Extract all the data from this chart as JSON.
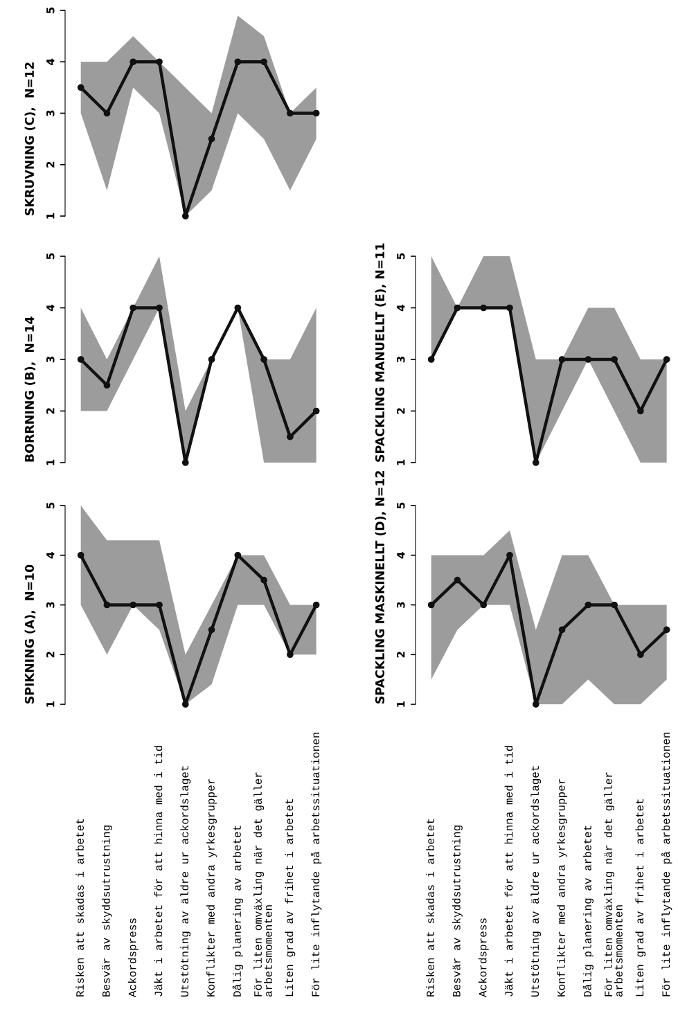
{
  "chart_data": [
    {
      "type": "line",
      "title": "SPIKNING (A),  N=10",
      "categories": [
        "Risken att skadas i arbetet",
        "Besvär av skyddsutrustning",
        "Ackordspress",
        "Jäkt i arbetet för att hinna med i tid",
        "Utstötning av äldre ur ackordslaget",
        "Konflikter med andra yrkesgrupper",
        "Dålig planering av arbetet",
        "För liten omväxling när det gäller\narbetsmomenten",
        "Liten grad av frihet i arbetet",
        "För lite inflytande på arbetssituationen"
      ],
      "ylim": [
        1,
        5
      ],
      "yticks": [
        1,
        2,
        3,
        4,
        5
      ],
      "marker": "circle",
      "line_style": "solid",
      "series": [
        {
          "color": "#111111",
          "values": [
            4,
            3,
            3,
            3,
            1,
            2.5,
            4,
            3.5,
            2,
            3
          ],
          "lower": [
            3,
            2,
            3,
            2.5,
            1,
            1.4,
            3,
            3,
            2,
            2
          ],
          "upper": [
            5,
            4.3,
            4.3,
            4.3,
            2,
            3,
            4,
            4,
            3,
            3
          ]
        }
      ]
    },
    {
      "type": "line",
      "title": "BORRNING (B),  N=14",
      "categories": [
        null,
        null,
        null,
        null,
        null,
        null,
        null,
        null,
        null,
        null
      ],
      "tick_labels": "y",
      "ylim": [
        1,
        5
      ],
      "yticks": [
        1,
        2,
        3,
        4,
        5
      ],
      "marker": "circle",
      "line_style": "solid",
      "series": [
        {
          "color": "#111111",
          "values": [
            3,
            2.5,
            4,
            4,
            1,
            3,
            4,
            3,
            1.5,
            2
          ],
          "lower": [
            2,
            2,
            3,
            4,
            1,
            3,
            4,
            1,
            1,
            1
          ],
          "upper": [
            4,
            3,
            4,
            5,
            2,
            3,
            4,
            3,
            3,
            4
          ]
        }
      ]
    },
    {
      "type": "line",
      "title": "SKRUVNING (C),  N=12",
      "categories": [
        null,
        null,
        null,
        null,
        null,
        null,
        null,
        null,
        null,
        null
      ],
      "tick_labels": "y",
      "ylim": [
        1,
        5
      ],
      "yticks": [
        1,
        2,
        3,
        4,
        5
      ],
      "marker": "circle",
      "line_style": "solid",
      "series": [
        {
          "color": "#111111",
          "values": [
            3.5,
            3,
            4,
            4,
            1,
            2.5,
            4,
            4,
            3,
            3
          ],
          "lower": [
            3,
            1.5,
            3.5,
            3,
            1,
            1.5,
            3,
            2.5,
            1.5,
            2.5
          ],
          "upper": [
            4,
            4,
            4.5,
            4,
            3.5,
            3,
            4.9,
            4.5,
            3,
            3.5
          ]
        }
      ]
    },
    {
      "type": "line",
      "title": "SPACKLING MASKINELLT (D), N=12",
      "categories": [
        "Risken att skadas i arbetet",
        "Besvär av skyddsutrustning",
        "Ackordspress",
        "Jäkt i arbetet för att hinna med i tid",
        "Utstötning av äldre ur ackordslaget",
        "Konflikter med andra yrkesgrupper",
        "Dålig planering av arbetet",
        "För liten omväxling när det gäller\narbetsmomenten",
        "Liten grad av frihet i arbetet",
        "För lite inflytande på arbetssituationen"
      ],
      "ylim": [
        1,
        5
      ],
      "yticks": [
        1,
        2,
        3,
        4,
        5
      ],
      "marker": "circle",
      "line_style": "solid",
      "series": [
        {
          "color": "#111111",
          "values": [
            3,
            3.5,
            3,
            4,
            1,
            2.5,
            3,
            3,
            2,
            2.5
          ],
          "lower": [
            1.5,
            2.5,
            3,
            3,
            1,
            1,
            1.5,
            1,
            1,
            1.5
          ],
          "upper": [
            4,
            4,
            4,
            4.5,
            2.5,
            4,
            4,
            3,
            3,
            3
          ]
        }
      ]
    },
    {
      "type": "line",
      "title": "SPACKLING MANUELLT (E), N=11",
      "categories": [
        null,
        null,
        null,
        null,
        null,
        null,
        null,
        null,
        null,
        null
      ],
      "tick_labels": "y",
      "ylim": [
        1,
        5
      ],
      "yticks": [
        1,
        2,
        3,
        4,
        5
      ],
      "marker": "circle",
      "line_style": "solid",
      "series": [
        {
          "color": "#111111",
          "values": [
            3,
            4,
            4,
            4,
            1,
            3,
            3,
            3,
            2,
            3
          ],
          "lower": [
            3,
            4,
            4,
            4,
            1,
            2,
            3,
            2,
            1,
            1
          ],
          "upper": [
            5,
            4,
            5,
            5,
            3,
            3,
            4,
            4,
            3,
            3
          ]
        }
      ]
    }
  ]
}
